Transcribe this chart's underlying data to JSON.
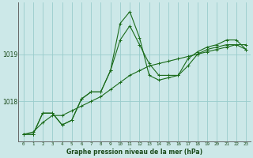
{
  "title": "Graphe pression niveau de la mer (hPa)",
  "bg_color": "#cce8e8",
  "grid_color": "#99cccc",
  "line_color": "#1a6b1a",
  "x_labels": [
    "0",
    "1",
    "2",
    "3",
    "4",
    "5",
    "6",
    "7",
    "8",
    "9",
    "10",
    "11",
    "12",
    "13",
    "14",
    "15",
    "16",
    "17",
    "18",
    "19",
    "20",
    "21",
    "22",
    "23"
  ],
  "series1": [
    1017.3,
    1017.3,
    1017.75,
    1017.75,
    1017.5,
    1017.6,
    1018.05,
    1018.2,
    1018.2,
    1018.65,
    1019.3,
    1019.6,
    1019.2,
    1018.8,
    1018.55,
    1018.55,
    1018.55,
    1018.75,
    1019.0,
    1019.1,
    1019.15,
    1019.2,
    1019.2,
    1019.1
  ],
  "series2": [
    1017.3,
    1017.3,
    1017.75,
    1017.75,
    1017.5,
    1017.6,
    1018.05,
    1018.2,
    1018.2,
    1018.65,
    1019.65,
    1019.9,
    1019.35,
    1018.55,
    1018.45,
    1018.5,
    1018.55,
    1018.9,
    1019.05,
    1019.15,
    1019.2,
    1019.3,
    1019.3,
    1019.1
  ],
  "series3": [
    1017.3,
    1017.35,
    1017.55,
    1017.7,
    1017.7,
    1017.8,
    1017.9,
    1018.0,
    1018.1,
    1018.25,
    1018.4,
    1018.55,
    1018.65,
    1018.75,
    1018.8,
    1018.85,
    1018.9,
    1018.95,
    1019.0,
    1019.05,
    1019.1,
    1019.15,
    1019.2,
    1019.2
  ],
  "ylim_min": 1017.15,
  "ylim_max": 1020.1
}
